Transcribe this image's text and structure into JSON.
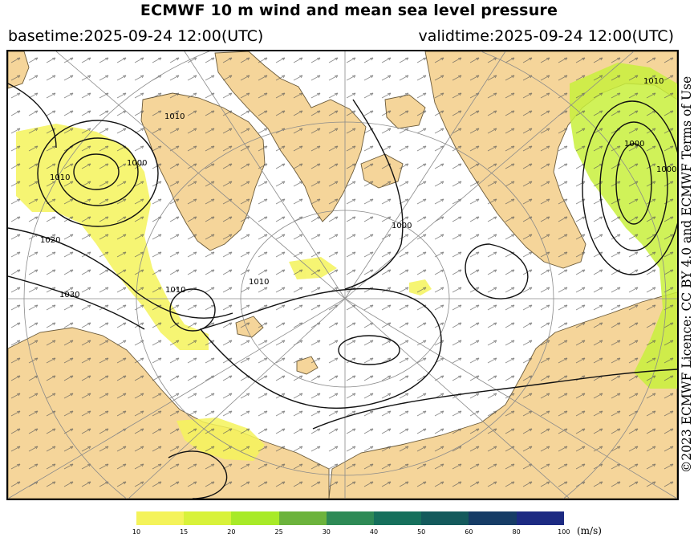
{
  "header": {
    "title": "ECMWF 10 m wind and mean sea level pressure",
    "basetime": "basetime:2025-09-24 12:00(UTC)",
    "validtime": "validtime:2025-09-24 12:00(UTC)"
  },
  "credit": "©2023 ECMWF Licence: CC BY 4.0 and ECMWF Terms of Use",
  "colors": {
    "land": "#f5d59a",
    "land_edge": "#6a5a3a",
    "sea": "#ffffff",
    "wind_low": "#f4f35a",
    "wind_mid": "#c8f03c"
  },
  "isobar_labels": [
    "1010",
    "1000",
    "1010",
    "1000",
    "1010",
    "1000",
    "1000",
    "1010",
    "1010",
    "1020",
    "1030"
  ],
  "colorbar": {
    "ticks": [
      "10",
      "15",
      "20",
      "25",
      "30",
      "40",
      "50",
      "60",
      "80",
      "100"
    ],
    "colors": [
      "#f4f35a",
      "#d8f23a",
      "#a8ea28",
      "#6cb33c",
      "#2e8a56",
      "#16705c",
      "#145a5c",
      "#163c66",
      "#1c2a82",
      "#2a3aa0"
    ],
    "unit": "(m/s)"
  }
}
